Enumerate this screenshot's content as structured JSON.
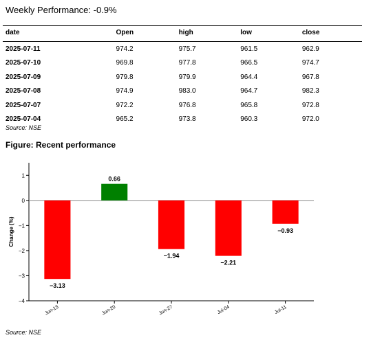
{
  "headline": "Weekly Performance: -0.9%",
  "table": {
    "columns": [
      "date",
      "Open",
      "high",
      "low",
      "close"
    ],
    "rows": [
      [
        "2025-07-11",
        "974.2",
        "975.7",
        "961.5",
        "962.9"
      ],
      [
        "2025-07-10",
        "969.8",
        "977.8",
        "966.5",
        "974.7"
      ],
      [
        "2025-07-09",
        "979.8",
        "979.9",
        "964.4",
        "967.8"
      ],
      [
        "2025-07-08",
        "974.9",
        "983.0",
        "964.7",
        "982.3"
      ],
      [
        "2025-07-07",
        "972.2",
        "976.8",
        "965.8",
        "972.8"
      ],
      [
        "2025-07-04",
        "965.2",
        "973.8",
        "960.3",
        "972.0"
      ]
    ]
  },
  "table_source": "Source: NSE",
  "figure_title": "Figure: Recent performance",
  "chart_source": "Source: NSE",
  "chart_data": {
    "type": "bar",
    "categories": [
      "Jun-13",
      "Jun-20",
      "Jun-27",
      "Jul-04",
      "Jul-11"
    ],
    "values": [
      -3.13,
      0.66,
      -1.94,
      -2.21,
      -0.93
    ],
    "value_labels": [
      "−3.13",
      "0.66",
      "−1.94",
      "−2.21",
      "−0.93"
    ],
    "ylabel": "Change (%)",
    "ylim": [
      -4,
      1.5
    ],
    "yticks": [
      1,
      0,
      -1,
      -2,
      -3,
      -4
    ],
    "ytick_labels": [
      "1",
      "0",
      "−1",
      "−2",
      "−3",
      "−4"
    ],
    "colors": {
      "positive": "#008000",
      "negative": "#ff0000",
      "zero_line": "#888888"
    },
    "grid": false
  }
}
